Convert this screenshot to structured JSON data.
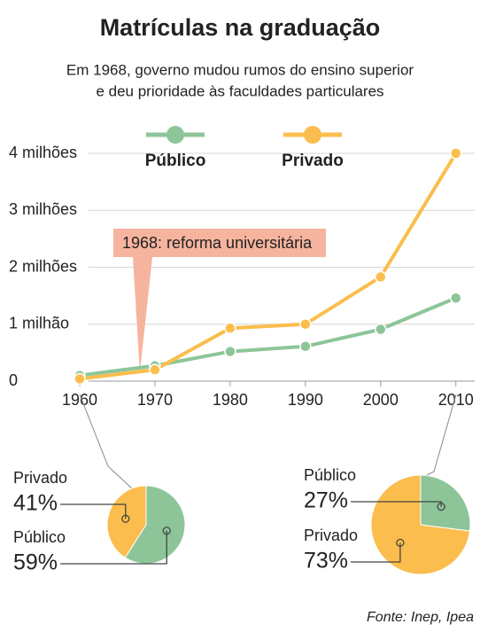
{
  "chart_data": [
    {
      "type": "line",
      "title": "Matrículas na graduação",
      "subtitle": [
        "Em 1968, governo mudou rumos do ensino superior",
        "e deu prioridade às faculdades particulares"
      ],
      "x": [
        1960,
        1970,
        1980,
        1990,
        2000,
        2010
      ],
      "series": [
        {
          "name": "Público",
          "color": "#8dc598",
          "values": [
            0.1,
            0.27,
            0.52,
            0.61,
            0.91,
            1.46
          ]
        },
        {
          "name": "Privado",
          "color": "#fbbd4d",
          "values": [
            0.04,
            0.2,
            0.93,
            1.0,
            1.83,
            4.0
          ]
        }
      ],
      "xlim": [
        1958,
        2012.5
      ],
      "xticks": [
        1960,
        1970,
        1980,
        1990,
        2000,
        2010
      ],
      "ylim": [
        0,
        4
      ],
      "yticks": [
        0,
        {
          "value": 1,
          "label": "1 milhão"
        },
        {
          "value": 2,
          "label": "2 milhões"
        },
        {
          "value": 3,
          "label": "3 milhões"
        },
        {
          "value": 4,
          "label": "4 milhões"
        }
      ],
      "grid": true,
      "annotations": [
        {
          "text": "1968: reforma universitária",
          "x": 1968
        }
      ]
    },
    {
      "type": "pie",
      "categories": [
        "Privado",
        "Público"
      ],
      "values": [
        41,
        59
      ],
      "value_labels": [
        "41%",
        "59%"
      ],
      "colors": [
        "#fbbd4d",
        "#8dc598"
      ]
    },
    {
      "type": "pie",
      "categories": [
        "Privado",
        "Público"
      ],
      "values": [
        73,
        27
      ],
      "value_labels": [
        "73%",
        "27%"
      ],
      "colors": [
        "#fbbd4d",
        "#8dc598"
      ]
    }
  ],
  "source": "Fonte: Inep, Ipea"
}
